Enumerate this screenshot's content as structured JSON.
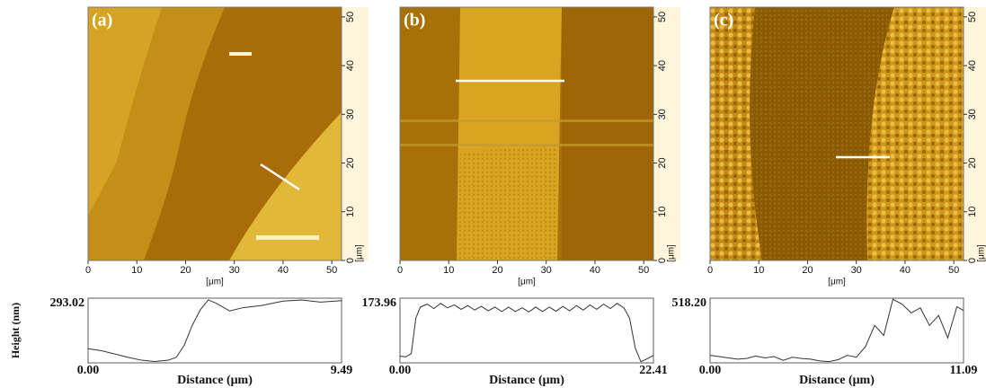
{
  "chart_data": [
    {
      "type": "afm",
      "title": "(a)",
      "xlabel": "[μm]",
      "ylabel": "[μm]",
      "xlim": [
        0,
        52
      ],
      "ylim": [
        0,
        52
      ],
      "xticks": [
        0,
        10,
        20,
        30,
        40,
        50
      ],
      "yticks": [
        0,
        10,
        20,
        30,
        40,
        50
      ]
    },
    {
      "type": "afm",
      "title": "(b)",
      "xlabel": "[μm]",
      "ylabel": "[μm]",
      "xlim": [
        0,
        52
      ],
      "ylim": [
        0,
        52
      ],
      "xticks": [
        0,
        10,
        20,
        30,
        40,
        50
      ],
      "yticks": [
        0,
        10,
        20,
        30,
        40,
        50
      ]
    },
    {
      "type": "afm",
      "title": "(c)",
      "xlabel": "[μm]",
      "ylabel": "[μm]",
      "xlim": [
        0,
        52
      ],
      "ylim": [
        0,
        52
      ],
      "xticks": [
        0,
        10,
        20,
        30,
        40,
        50
      ],
      "yticks": [
        0,
        10,
        20,
        30,
        40,
        50
      ]
    },
    {
      "type": "line",
      "ylabel": "Height (nm)",
      "xlabel": "Distance (μm)",
      "color": "#333333",
      "xlim": [
        0,
        9.49
      ],
      "ylim": [
        0,
        293.02
      ],
      "xticks": [
        {
          "value": 0,
          "label": "0.00"
        },
        9.49
      ],
      "yticks": [
        293.02
      ],
      "x": [
        0,
        0.5,
        1,
        1.5,
        2,
        2.5,
        3,
        3.3,
        3.6,
        3.9,
        4.2,
        4.5,
        4.8,
        5.3,
        5.8,
        6.5,
        7.3,
        8,
        8.7,
        9.49
      ],
      "values": [
        64,
        55,
        40,
        25,
        12,
        6,
        12,
        25,
        80,
        170,
        240,
        285,
        270,
        235,
        250,
        260,
        280,
        285,
        275,
        282
      ]
    },
    {
      "type": "line",
      "xlabel": "Distance (μm)",
      "color": "#333333",
      "xlim": [
        0,
        22.41
      ],
      "ylim": [
        0,
        173.96
      ],
      "xticks": [
        {
          "value": 0,
          "label": "0.00"
        },
        22.41
      ],
      "yticks": [
        173.96
      ],
      "x": [
        0,
        0.5,
        1.0,
        1.4,
        1.8,
        2.4,
        3.0,
        3.6,
        4.2,
        4.8,
        5.4,
        6.0,
        6.6,
        7.2,
        7.8,
        8.4,
        9.0,
        9.6,
        10.2,
        10.8,
        11.4,
        12.0,
        12.6,
        13.2,
        13.8,
        14.4,
        15.0,
        15.6,
        16.2,
        16.8,
        17.4,
        18.0,
        18.6,
        19.2,
        19.8,
        20.3,
        20.8,
        21.3,
        21.8,
        22.41
      ],
      "values": [
        18,
        16,
        25,
        120,
        150,
        158,
        146,
        160,
        148,
        156,
        144,
        154,
        142,
        152,
        140,
        150,
        138,
        150,
        138,
        148,
        137,
        150,
        138,
        150,
        139,
        152,
        140,
        154,
        142,
        156,
        144,
        158,
        146,
        160,
        148,
        120,
        40,
        3,
        10,
        20
      ]
    },
    {
      "type": "line",
      "xlabel": "Distance (μm)",
      "color": "#333333",
      "xlim": [
        0,
        11.09
      ],
      "ylim": [
        0,
        518.2
      ],
      "xticks": [
        {
          "value": 0,
          "label": "0.00"
        },
        11.09
      ],
      "yticks": [
        {
          "value": 518.2,
          "label": "518.20"
        }
      ],
      "x": [
        0,
        0.4,
        0.8,
        1.2,
        1.6,
        2.0,
        2.4,
        2.8,
        3.2,
        3.6,
        4.0,
        4.4,
        4.8,
        5.2,
        5.6,
        6.0,
        6.4,
        6.8,
        7.2,
        7.6,
        8.0,
        8.4,
        8.8,
        9.2,
        9.6,
        10.0,
        10.4,
        10.8,
        11.09
      ],
      "values": [
        60,
        50,
        40,
        30,
        35,
        55,
        40,
        50,
        20,
        45,
        35,
        30,
        15,
        10,
        25,
        60,
        45,
        130,
        300,
        220,
        510,
        470,
        400,
        440,
        300,
        380,
        200,
        450,
        420
      ]
    }
  ]
}
